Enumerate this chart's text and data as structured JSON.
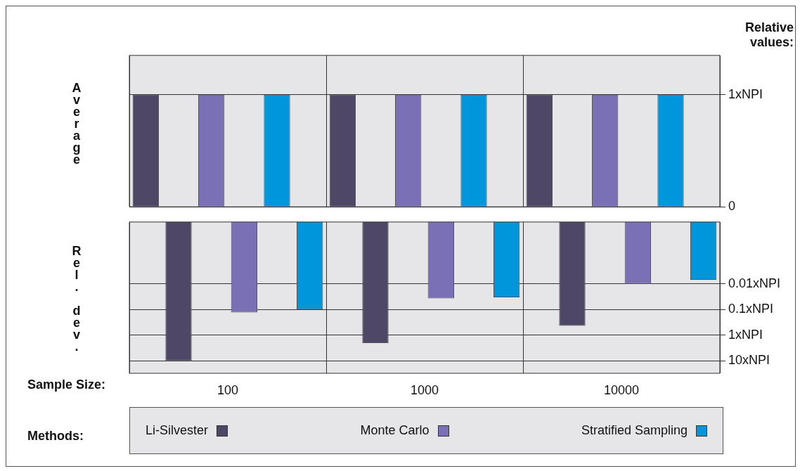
{
  "chart_data": [
    {
      "type": "bar",
      "categories": [
        "100",
        "1000",
        "10000"
      ],
      "ylabel": "Average",
      "annotations": [
        "Relative values:"
      ],
      "ylim": [
        0,
        1.35
      ],
      "yticks": [
        {
          "value": 0,
          "label": "0"
        },
        {
          "value": 1,
          "label": "1xNPI"
        }
      ],
      "grid": true,
      "tick_labels": "y",
      "series": [
        {
          "color": "#4e4766",
          "values": [
            1,
            1,
            1
          ]
        },
        {
          "color": "#7a70b5",
          "values": [
            1,
            1,
            1
          ]
        },
        {
          "color": "#0096db",
          "values": [
            1,
            1,
            1
          ]
        }
      ]
    },
    {
      "type": "bar",
      "categories": [
        "100",
        "1000",
        "10000"
      ],
      "xlabel": "Sample Size:",
      "ylabel": "Rel. dev.",
      "log": "y",
      "ylim": [
        30,
        4e-05
      ],
      "yticks": [
        {
          "value": 0.01,
          "label": "0.01xNPI"
        },
        {
          "value": 0.1,
          "label": "0.1xNPI"
        },
        {
          "value": 1,
          "label": "1xNPI"
        },
        {
          "value": 10,
          "label": "10xNPI"
        }
      ],
      "grid": true,
      "legend": "bottom",
      "legend_title": "Methods:",
      "series": [
        {
          "name": "Li-Silvester",
          "color": "#4e4766",
          "values": [
            10,
            2,
            0.43
          ]
        },
        {
          "name": "Monte Carlo",
          "color": "#7a70b5",
          "values": [
            0.13,
            0.037,
            0.01
          ]
        },
        {
          "name": "Stratified Sampling",
          "color": "#0096db",
          "values": [
            0.1,
            0.034,
            0.007
          ]
        }
      ]
    }
  ]
}
